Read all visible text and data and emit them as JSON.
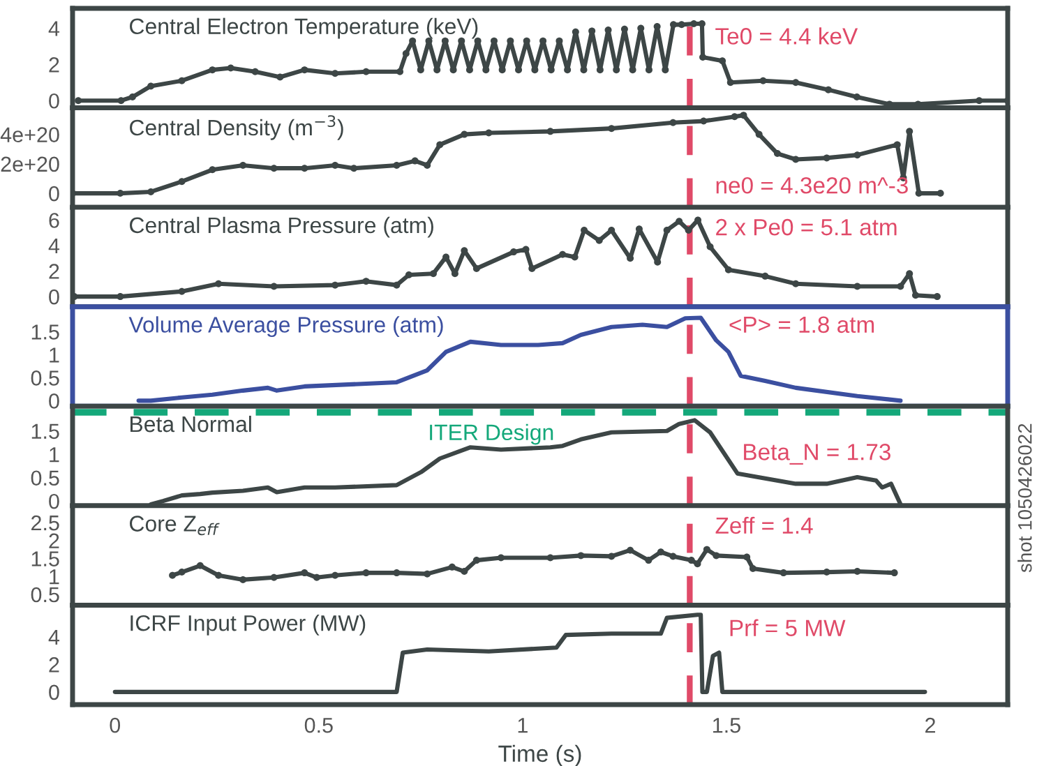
{
  "chart_data": [
    {
      "type": "line",
      "title": "Central Electron Temperature (keV)",
      "xlim": [
        -0.104,
        2.19
      ],
      "xticks": [
        0,
        0.5,
        1,
        1.5,
        2
      ],
      "ylim": [
        -0.4,
        5.1
      ],
      "yticks": [
        0,
        2,
        4
      ],
      "tick_labels": "y",
      "marker": "circle",
      "x": [
        -0.09,
        0.015,
        0.043,
        0.088,
        0.164,
        0.239,
        0.284,
        0.344,
        0.405,
        0.465,
        0.54,
        0.616,
        0.699,
        0.714,
        0.73,
        0.75,
        0.77,
        0.79,
        0.81,
        0.83,
        0.85,
        0.87,
        0.89,
        0.91,
        0.93,
        0.95,
        0.97,
        0.99,
        1.01,
        1.03,
        1.05,
        1.07,
        1.09,
        1.11,
        1.13,
        1.15,
        1.17,
        1.19,
        1.21,
        1.23,
        1.25,
        1.27,
        1.29,
        1.31,
        1.33,
        1.35,
        1.37,
        1.39,
        1.42,
        1.44,
        1.442,
        1.49,
        1.51,
        1.59,
        1.67,
        1.75,
        1.82,
        1.9,
        1.97,
        2.12,
        2.19
      ],
      "series": [
        {
          "color": "#3d4646",
          "values": [
            0,
            0,
            0.2,
            0.8,
            1.1,
            1.7,
            1.8,
            1.6,
            1.3,
            1.7,
            1.5,
            1.6,
            1.6,
            2.6,
            3.3,
            1.7,
            3.3,
            1.7,
            3.3,
            1.7,
            3.3,
            1.7,
            3.3,
            1.7,
            3.3,
            1.7,
            3.3,
            1.7,
            3.3,
            1.7,
            3.3,
            1.7,
            3.3,
            1.7,
            3.8,
            1.7,
            3.85,
            1.7,
            3.9,
            1.7,
            3.95,
            1.7,
            4.0,
            1.7,
            4.1,
            1.7,
            4.2,
            4.2,
            4.25,
            4.25,
            2.4,
            2.2,
            1.0,
            1.1,
            1.0,
            0.6,
            0.2,
            -0.2,
            -0.2,
            0,
            0
          ]
        }
      ],
      "ref_lines": [
        {
          "axis": "x",
          "value": 1.41,
          "color": "#e04a68",
          "line_style": "dashed"
        }
      ],
      "annotations": [
        "Te0 = 4.4 keV"
      ]
    },
    {
      "type": "line",
      "title": "Central Density (m$^{−3}$)",
      "xlim": [
        -0.104,
        2.19
      ],
      "xticks": [
        0,
        0.5,
        1,
        1.5,
        2
      ],
      "ylim": [
        -9.5e+19,
        5.8e+20
      ],
      "yticks": [
        {
          "value": 0,
          "label": "0"
        },
        {
          "value": 2e+20,
          "label": "2e+20"
        },
        {
          "value": 4e+20,
          "label": "4e+20"
        }
      ],
      "tick_labels": "y",
      "marker": "circle",
      "x": [
        -0.104,
        0.013,
        0.088,
        0.164,
        0.239,
        0.314,
        0.39,
        0.465,
        0.54,
        0.586,
        0.691,
        0.736,
        0.766,
        0.797,
        0.857,
        0.917,
        1.068,
        1.218,
        1.369,
        1.444,
        1.52,
        1.542,
        1.58,
        1.625,
        1.67,
        1.746,
        1.821,
        1.919,
        1.934,
        1.949,
        1.972,
        2.025
      ],
      "series": [
        {
          "color": "#3d4646",
          "values": [
            0,
            0,
            1e+19,
            8e+19,
            1.6e+20,
            1.9e+20,
            1.7e+20,
            1.7e+20,
            1.9e+20,
            1.7e+20,
            1.9e+20,
            2.2e+20,
            1.9e+20,
            3.3e+20,
            4e+20,
            4.1e+20,
            4.2e+20,
            4.4e+20,
            4.8e+20,
            4.9e+20,
            5.2e+20,
            5.3e+20,
            4e+20,
            2.7e+20,
            2.3e+20,
            2.4e+20,
            2.6e+20,
            3.3e+20,
            1.05e+20,
            4.2e+20,
            0,
            0
          ]
        }
      ],
      "ref_lines": [
        {
          "axis": "x",
          "value": 1.41,
          "color": "#e04a68",
          "line_style": "dashed"
        }
      ],
      "annotations": [
        "ne0 = 4.3e20 m^-3"
      ]
    },
    {
      "type": "line",
      "title": "Central Plasma Pressure (atm)",
      "xlim": [
        -0.104,
        2.19
      ],
      "xticks": [
        0,
        0.5,
        1,
        1.5,
        2
      ],
      "ylim": [
        -0.8,
        7
      ],
      "yticks": [
        0,
        2,
        4,
        6
      ],
      "tick_labels": "y",
      "marker": "circle",
      "x": [
        -0.1,
        0.013,
        0.164,
        0.254,
        0.39,
        0.54,
        0.616,
        0.691,
        0.721,
        0.781,
        0.812,
        0.834,
        0.857,
        0.887,
        0.978,
        1.008,
        1.023,
        1.098,
        1.128,
        1.151,
        1.188,
        1.218,
        1.264,
        1.286,
        1.331,
        1.354,
        1.384,
        1.407,
        1.43,
        1.46,
        1.505,
        1.595,
        1.67,
        1.821,
        1.927,
        1.949,
        1.964,
        2.017
      ],
      "series": [
        {
          "color": "#3d4646",
          "values": [
            0,
            0,
            0.4,
            1.0,
            0.8,
            0.9,
            1.2,
            0.9,
            1.7,
            1.8,
            3.1,
            1.8,
            3.6,
            2.2,
            3.5,
            3.7,
            2.2,
            3.3,
            3.1,
            5.2,
            4.4,
            5.2,
            3.0,
            5.3,
            2.7,
            5.2,
            5.9,
            5.2,
            6.0,
            3.9,
            2.1,
            1.6,
            1.0,
            0.8,
            0.8,
            1.8,
            0.1,
            0
          ]
        }
      ],
      "ref_lines": [
        {
          "axis": "x",
          "value": 1.41,
          "color": "#e04a68",
          "line_style": "dashed"
        }
      ],
      "annotations": [
        "2 x Pe0 = 5.1 atm"
      ]
    },
    {
      "type": "line",
      "title": "Volume Average Pressure (atm)",
      "xlim": [
        -0.104,
        2.19
      ],
      "xticks": [
        0,
        0.5,
        1,
        1.5,
        2
      ],
      "ylim": [
        -0.12,
        2.04
      ],
      "yticks": [
        0,
        0.5,
        1,
        1.5
      ],
      "tick_labels": "y",
      "marker": "none",
      "x": [
        0.058,
        0.088,
        0.164,
        0.239,
        0.314,
        0.375,
        0.397,
        0.465,
        0.616,
        0.691,
        0.766,
        0.812,
        0.872,
        0.947,
        1.038,
        1.098,
        1.143,
        1.218,
        1.294,
        1.354,
        1.399,
        1.437,
        1.475,
        1.505,
        1.535,
        1.595,
        1.67,
        1.821,
        1.927
      ],
      "series": [
        {
          "color": "#3b4fa0",
          "values": [
            0,
            0,
            0.07,
            0.13,
            0.22,
            0.28,
            0.22,
            0.31,
            0.37,
            0.4,
            0.66,
            1.06,
            1.28,
            1.21,
            1.21,
            1.25,
            1.43,
            1.6,
            1.65,
            1.6,
            1.79,
            1.8,
            1.31,
            1.06,
            0.54,
            0.43,
            0.28,
            0.1,
            0
          ]
        }
      ],
      "ref_lines": [
        {
          "axis": "x",
          "value": 1.41,
          "color": "#e04a68",
          "line_style": "dashed"
        }
      ],
      "annotations": [
        "<P> = 1.8 atm"
      ]
    },
    {
      "type": "line",
      "title": "Beta Normal",
      "xlim": [
        -0.104,
        2.19
      ],
      "xticks": [
        0,
        0.5,
        1,
        1.5,
        2
      ],
      "ylim": [
        -0.1,
        2.03
      ],
      "yticks": [
        0,
        0.5,
        1,
        1.5
      ],
      "tick_labels": "y",
      "marker": "none",
      "x": [
        0.088,
        0.118,
        0.164,
        0.209,
        0.239,
        0.314,
        0.375,
        0.397,
        0.465,
        0.54,
        0.691,
        0.751,
        0.797,
        0.872,
        0.947,
        1.068,
        1.098,
        1.143,
        1.218,
        1.354,
        1.384,
        1.422,
        1.46,
        1.527,
        1.67,
        1.746,
        1.821,
        1.867,
        1.882,
        1.904,
        1.927
      ],
      "series": [
        {
          "color": "#3d4646",
          "values": [
            -0.07,
            0,
            0.12,
            0.15,
            0.18,
            0.22,
            0.29,
            0.19,
            0.29,
            0.29,
            0.34,
            0.62,
            0.91,
            1.15,
            1.1,
            1.15,
            1.18,
            1.32,
            1.47,
            1.5,
            1.65,
            1.73,
            1.47,
            0.59,
            0.37,
            0.37,
            0.51,
            0.44,
            0.29,
            0.37,
            -0.07
          ]
        }
      ],
      "ref_lines": [
        {
          "axis": "x",
          "value": 1.41,
          "color": "#e04a68",
          "line_style": "dashed"
        },
        {
          "axis": "y",
          "value": 1.9,
          "label": "ITER Design",
          "color": "#14a87a",
          "line_style": "dashed"
        }
      ],
      "annotations": [
        "Beta_N = 1.73"
      ]
    },
    {
      "type": "line",
      "title": "Core Z$_{eff}$",
      "xlim": [
        -0.104,
        2.19
      ],
      "xticks": [
        0,
        0.5,
        1,
        1.5,
        2
      ],
      "ylim": [
        0.2,
        2.97
      ],
      "yticks": [
        0.5,
        1,
        1.5,
        2,
        2.5
      ],
      "tick_labels": "y",
      "marker": "circle",
      "x": [
        0.141,
        0.164,
        0.209,
        0.254,
        0.314,
        0.39,
        0.465,
        0.495,
        0.54,
        0.616,
        0.691,
        0.766,
        0.827,
        0.857,
        0.887,
        0.947,
        1.068,
        1.143,
        1.218,
        1.264,
        1.309,
        1.339,
        1.369,
        1.414,
        1.429,
        1.452,
        1.475,
        1.55,
        1.565,
        1.64,
        1.746,
        1.821,
        1.912
      ],
      "series": [
        {
          "color": "#3d4646",
          "values": [
            1.03,
            1.12,
            1.3,
            1.03,
            0.91,
            0.97,
            1.1,
            0.97,
            1.03,
            1.1,
            1.1,
            1.07,
            1.26,
            1.14,
            1.45,
            1.52,
            1.52,
            1.58,
            1.56,
            1.73,
            1.45,
            1.68,
            1.56,
            1.45,
            1.35,
            1.75,
            1.58,
            1.54,
            1.22,
            1.1,
            1.12,
            1.14,
            1.1
          ]
        }
      ],
      "ref_lines": [
        {
          "axis": "x",
          "value": 1.41,
          "color": "#e04a68",
          "line_style": "dashed"
        }
      ],
      "annotations": [
        "Zeff = 1.4"
      ]
    },
    {
      "type": "line",
      "title": "ICRF Input Power (MW)",
      "xlabel": "Time (s)",
      "xlim": [
        -0.104,
        2.19
      ],
      "ylim": [
        -0.92,
        6.3
      ],
      "yticks": [
        0,
        2,
        4
      ],
      "xticks": [
        0,
        0.5,
        1,
        1.5,
        2
      ],
      "marker": "none",
      "x": [
        0,
        0.691,
        0.706,
        0.766,
        0.917,
        1.083,
        1.106,
        1.218,
        1.339,
        1.354,
        1.429,
        1.437,
        1.441,
        1.452,
        1.467,
        1.482,
        1.49,
        1.987
      ],
      "series": [
        {
          "color": "#3d4646",
          "values": [
            0,
            0,
            2.85,
            3.08,
            2.94,
            3.22,
            4.14,
            4.23,
            4.23,
            5.38,
            5.6,
            5.6,
            0,
            0,
            2.62,
            2.85,
            0,
            0
          ]
        }
      ],
      "ref_lines": [
        {
          "axis": "x",
          "value": 1.41,
          "color": "#e04a68",
          "line_style": "dashed"
        }
      ],
      "annotations": [
        "Prf = 5 MW",
        "shot 1050426022"
      ]
    }
  ]
}
